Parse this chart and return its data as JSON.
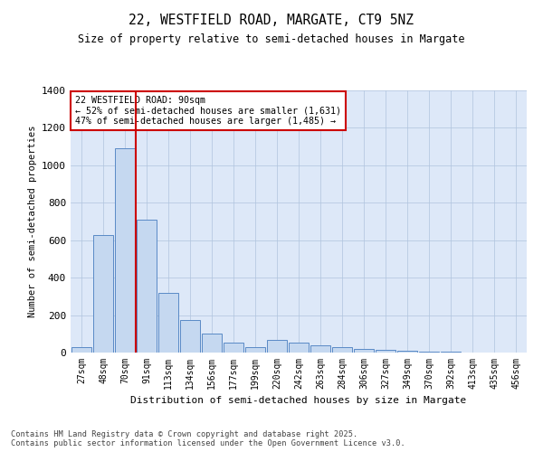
{
  "title_line1": "22, WESTFIELD ROAD, MARGATE, CT9 5NZ",
  "title_line2": "Size of property relative to semi-detached houses in Margate",
  "xlabel": "Distribution of semi-detached houses by size in Margate",
  "ylabel": "Number of semi-detached properties",
  "categories": [
    "27sqm",
    "48sqm",
    "70sqm",
    "91sqm",
    "113sqm",
    "134sqm",
    "156sqm",
    "177sqm",
    "199sqm",
    "220sqm",
    "242sqm",
    "263sqm",
    "284sqm",
    "306sqm",
    "327sqm",
    "349sqm",
    "370sqm",
    "392sqm",
    "413sqm",
    "435sqm",
    "456sqm"
  ],
  "values": [
    30,
    630,
    1090,
    710,
    320,
    175,
    100,
    55,
    30,
    70,
    55,
    40,
    30,
    20,
    15,
    10,
    5,
    3,
    2,
    1,
    0
  ],
  "bar_color": "#c5d8f0",
  "bar_edge_color": "#5a8ac6",
  "vline_x": 2.5,
  "vline_color": "#cc0000",
  "annotation_title": "22 WESTFIELD ROAD: 90sqm",
  "annotation_line1": "← 52% of semi-detached houses are smaller (1,631)",
  "annotation_line2": "47% of semi-detached houses are larger (1,485) →",
  "annotation_box_color": "#cc0000",
  "ylim": [
    0,
    1400
  ],
  "yticks": [
    0,
    200,
    400,
    600,
    800,
    1000,
    1200,
    1400
  ],
  "footer_line1": "Contains HM Land Registry data © Crown copyright and database right 2025.",
  "footer_line2": "Contains public sector information licensed under the Open Government Licence v3.0.",
  "background_color": "#dde8f8",
  "plot_background": "#ffffff"
}
